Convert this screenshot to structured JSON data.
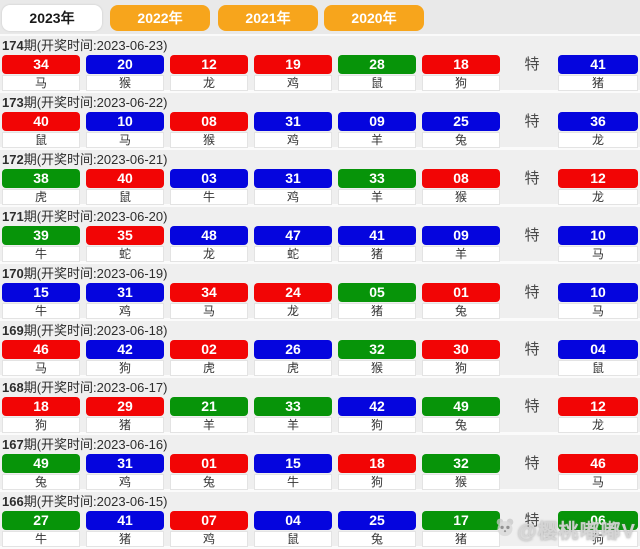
{
  "tabs": [
    {
      "label": "2023年",
      "active": true
    },
    {
      "label": "2022年",
      "active": false
    },
    {
      "label": "2021年",
      "active": false
    },
    {
      "label": "2020年",
      "active": false
    }
  ],
  "row_labels": {
    "period_suffix": "期",
    "time_prefix": "(开奖时间:",
    "time_suffix": ")",
    "special_label": "特"
  },
  "colors": {
    "tab_orange": "#F7A51C",
    "ball_red": "#F20505",
    "ball_blue": "#0505DE",
    "ball_green": "#079409"
  },
  "watermark": {
    "icon": "panda-logo",
    "text": "@樱桃嘟嘟V"
  },
  "draws": [
    {
      "period": "174",
      "date": "2023-06-23",
      "balls": [
        {
          "num": "34",
          "color": "red",
          "zodiac": "马"
        },
        {
          "num": "20",
          "color": "blue",
          "zodiac": "猴"
        },
        {
          "num": "12",
          "color": "red",
          "zodiac": "龙"
        },
        {
          "num": "19",
          "color": "red",
          "zodiac": "鸡"
        },
        {
          "num": "28",
          "color": "green",
          "zodiac": "鼠"
        },
        {
          "num": "18",
          "color": "red",
          "zodiac": "狗"
        }
      ],
      "special": {
        "num": "41",
        "color": "blue",
        "zodiac": "猪"
      }
    },
    {
      "period": "173",
      "date": "2023-06-22",
      "balls": [
        {
          "num": "40",
          "color": "red",
          "zodiac": "鼠"
        },
        {
          "num": "10",
          "color": "blue",
          "zodiac": "马"
        },
        {
          "num": "08",
          "color": "red",
          "zodiac": "猴"
        },
        {
          "num": "31",
          "color": "blue",
          "zodiac": "鸡"
        },
        {
          "num": "09",
          "color": "blue",
          "zodiac": "羊"
        },
        {
          "num": "25",
          "color": "blue",
          "zodiac": "兔"
        }
      ],
      "special": {
        "num": "36",
        "color": "blue",
        "zodiac": "龙"
      }
    },
    {
      "period": "172",
      "date": "2023-06-21",
      "balls": [
        {
          "num": "38",
          "color": "green",
          "zodiac": "虎"
        },
        {
          "num": "40",
          "color": "red",
          "zodiac": "鼠"
        },
        {
          "num": "03",
          "color": "blue",
          "zodiac": "牛"
        },
        {
          "num": "31",
          "color": "blue",
          "zodiac": "鸡"
        },
        {
          "num": "33",
          "color": "green",
          "zodiac": "羊"
        },
        {
          "num": "08",
          "color": "red",
          "zodiac": "猴"
        }
      ],
      "special": {
        "num": "12",
        "color": "red",
        "zodiac": "龙"
      }
    },
    {
      "period": "171",
      "date": "2023-06-20",
      "balls": [
        {
          "num": "39",
          "color": "green",
          "zodiac": "牛"
        },
        {
          "num": "35",
          "color": "red",
          "zodiac": "蛇"
        },
        {
          "num": "48",
          "color": "blue",
          "zodiac": "龙"
        },
        {
          "num": "47",
          "color": "blue",
          "zodiac": "蛇"
        },
        {
          "num": "41",
          "color": "blue",
          "zodiac": "猪"
        },
        {
          "num": "09",
          "color": "blue",
          "zodiac": "羊"
        }
      ],
      "special": {
        "num": "10",
        "color": "blue",
        "zodiac": "马"
      }
    },
    {
      "period": "170",
      "date": "2023-06-19",
      "balls": [
        {
          "num": "15",
          "color": "blue",
          "zodiac": "牛"
        },
        {
          "num": "31",
          "color": "blue",
          "zodiac": "鸡"
        },
        {
          "num": "34",
          "color": "red",
          "zodiac": "马"
        },
        {
          "num": "24",
          "color": "red",
          "zodiac": "龙"
        },
        {
          "num": "05",
          "color": "green",
          "zodiac": "猪"
        },
        {
          "num": "01",
          "color": "red",
          "zodiac": "兔"
        }
      ],
      "special": {
        "num": "10",
        "color": "blue",
        "zodiac": "马"
      }
    },
    {
      "period": "169",
      "date": "2023-06-18",
      "balls": [
        {
          "num": "46",
          "color": "red",
          "zodiac": "马"
        },
        {
          "num": "42",
          "color": "blue",
          "zodiac": "狗"
        },
        {
          "num": "02",
          "color": "red",
          "zodiac": "虎"
        },
        {
          "num": "26",
          "color": "blue",
          "zodiac": "虎"
        },
        {
          "num": "32",
          "color": "green",
          "zodiac": "猴"
        },
        {
          "num": "30",
          "color": "red",
          "zodiac": "狗"
        }
      ],
      "special": {
        "num": "04",
        "color": "blue",
        "zodiac": "鼠"
      }
    },
    {
      "period": "168",
      "date": "2023-06-17",
      "balls": [
        {
          "num": "18",
          "color": "red",
          "zodiac": "狗"
        },
        {
          "num": "29",
          "color": "red",
          "zodiac": "猪"
        },
        {
          "num": "21",
          "color": "green",
          "zodiac": "羊"
        },
        {
          "num": "33",
          "color": "green",
          "zodiac": "羊"
        },
        {
          "num": "42",
          "color": "blue",
          "zodiac": "狗"
        },
        {
          "num": "49",
          "color": "green",
          "zodiac": "兔"
        }
      ],
      "special": {
        "num": "12",
        "color": "red",
        "zodiac": "龙"
      }
    },
    {
      "period": "167",
      "date": "2023-06-16",
      "balls": [
        {
          "num": "49",
          "color": "green",
          "zodiac": "兔"
        },
        {
          "num": "31",
          "color": "blue",
          "zodiac": "鸡"
        },
        {
          "num": "01",
          "color": "red",
          "zodiac": "兔"
        },
        {
          "num": "15",
          "color": "blue",
          "zodiac": "牛"
        },
        {
          "num": "18",
          "color": "red",
          "zodiac": "狗"
        },
        {
          "num": "32",
          "color": "green",
          "zodiac": "猴"
        }
      ],
      "special": {
        "num": "46",
        "color": "red",
        "zodiac": "马"
      }
    },
    {
      "period": "166",
      "date": "2023-06-15",
      "balls": [
        {
          "num": "27",
          "color": "green",
          "zodiac": "牛"
        },
        {
          "num": "41",
          "color": "blue",
          "zodiac": "猪"
        },
        {
          "num": "07",
          "color": "red",
          "zodiac": "鸡"
        },
        {
          "num": "04",
          "color": "blue",
          "zodiac": "鼠"
        },
        {
          "num": "25",
          "color": "blue",
          "zodiac": "兔"
        },
        {
          "num": "17",
          "color": "green",
          "zodiac": "猪"
        }
      ],
      "special": {
        "num": "06",
        "color": "green",
        "zodiac": "狗"
      }
    }
  ]
}
